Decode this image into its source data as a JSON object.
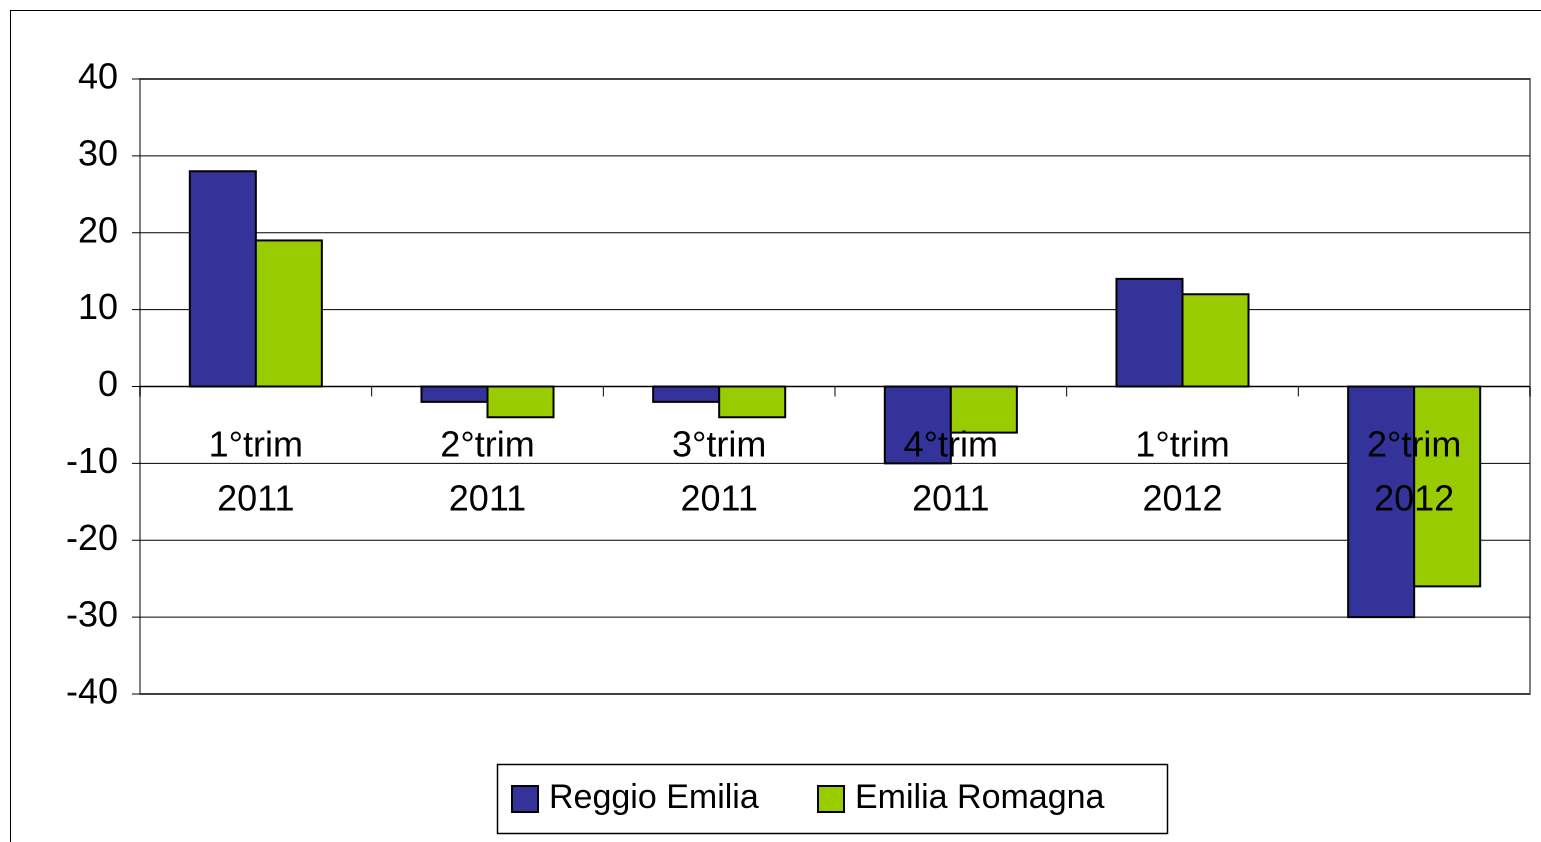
{
  "chart_data": {
    "type": "bar",
    "categories": [
      [
        "1°trim",
        "2011"
      ],
      [
        "2°trim",
        "2011"
      ],
      [
        "3°trim",
        "2011"
      ],
      [
        "4°trim",
        "2011"
      ],
      [
        "1°trim",
        "2012"
      ],
      [
        "2°trim",
        "2012"
      ]
    ],
    "series": [
      {
        "name": "Reggio Emilia",
        "color": "#333399",
        "values": [
          28,
          -2,
          -2,
          -10,
          14,
          -30
        ]
      },
      {
        "name": "Emilia Romagna",
        "color": "#99cc00",
        "values": [
          19,
          -4,
          -4,
          -6,
          12,
          -26
        ]
      }
    ],
    "ylim": [
      -40,
      40
    ],
    "yticks": [
      -40,
      -30,
      -20,
      -10,
      0,
      10,
      20,
      30,
      40
    ],
    "grid": true
  }
}
